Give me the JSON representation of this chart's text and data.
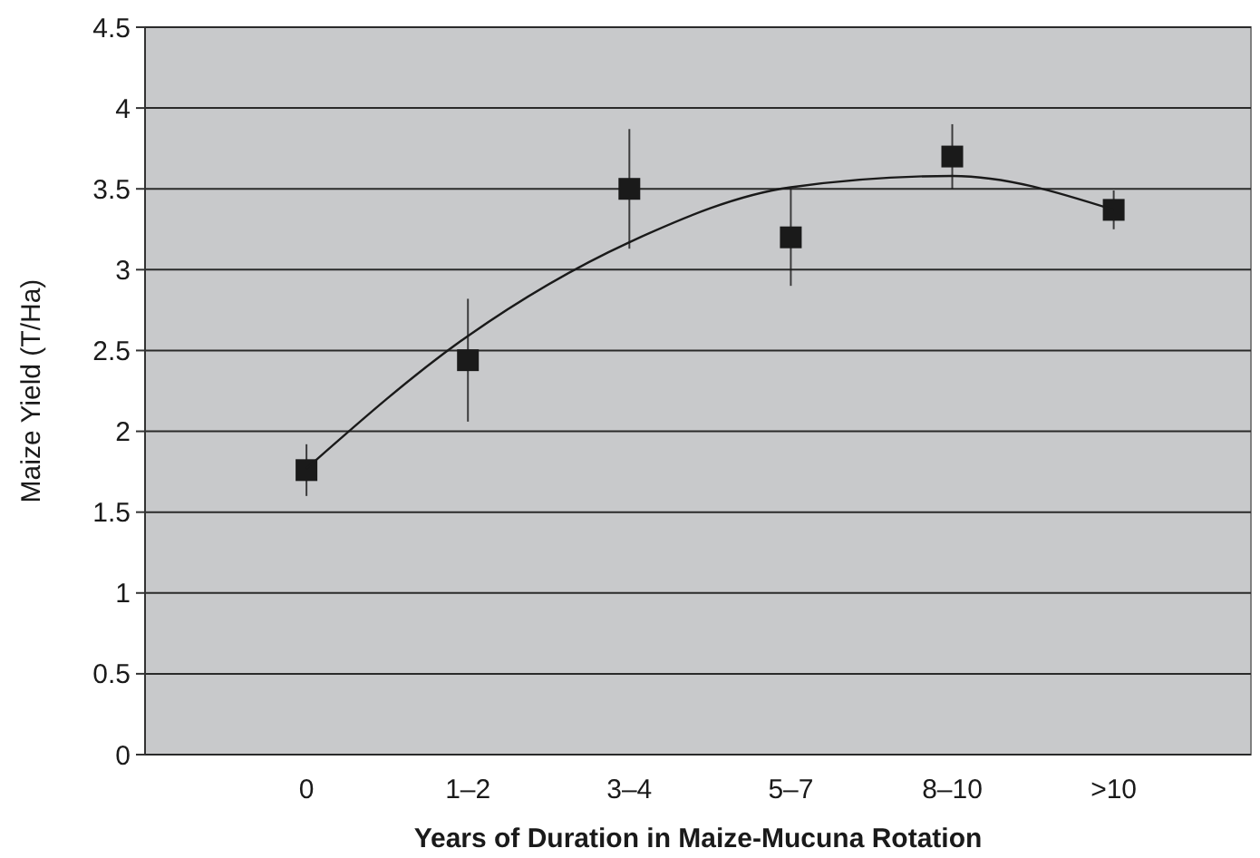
{
  "chart_data": {
    "type": "scatter",
    "xlabel": "Years of Duration in Maize-Mucuna Rotation",
    "ylabel": "Maize Yield (T/Ha)",
    "categories": [
      "0",
      "1–2",
      "3–4",
      "5–7",
      "8–10",
      ">10"
    ],
    "series": [
      {
        "type": "scatter",
        "color": "#1a1a1a",
        "marker": "square",
        "values": [
          1.76,
          2.44,
          3.5,
          3.2,
          3.7,
          3.37
        ],
        "errors": [
          0.16,
          0.38,
          0.37,
          0.3,
          0.2,
          0.12
        ]
      },
      {
        "type": "line",
        "color": "#1a1a1a",
        "marker": "none",
        "values": [
          1.77,
          2.59,
          3.17,
          3.51,
          3.58,
          3.37
        ]
      }
    ],
    "ylim": [
      0,
      4.5
    ],
    "yticks": [
      0,
      0.5,
      1,
      1.5,
      2,
      2.5,
      3,
      3.5,
      4,
      4.5
    ],
    "grid": "y"
  }
}
